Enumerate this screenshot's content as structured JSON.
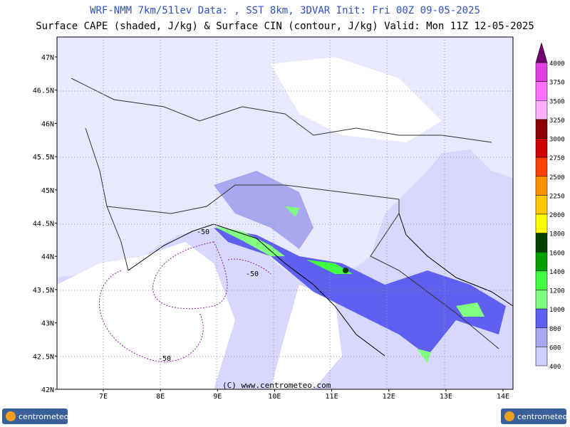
{
  "header": {
    "line1": "WRF-NMM 7km/51lev  Data: , SST 8km, 3DVAR  Init: Fri 00Z 09-05-2025",
    "line2": "Surface CAPE (shaded, J/kg) & Surface CIN (contour, J/kg)  Valid: Mon 11Z 12-05-2025"
  },
  "map": {
    "lat_labels": [
      "47N",
      "46.5N",
      "46N",
      "45.5N",
      "45N",
      "44.5N",
      "44N",
      "43.5N",
      "43N",
      "42.5N",
      "42N"
    ],
    "lon_labels": [
      "7E",
      "8E",
      "9E",
      "10E",
      "11E",
      "12E",
      "13E",
      "14E"
    ],
    "contour_labels": [
      "-50",
      "-50",
      "-50"
    ],
    "copyright": "(C) www.centrometeo.com"
  },
  "colorbar": {
    "labels": [
      "4000",
      "3750",
      "3500",
      "3250",
      "3000",
      "2750",
      "2500",
      "2250",
      "2000",
      "1800",
      "1600",
      "1400",
      "1200",
      "1000",
      "800",
      "600",
      "400"
    ],
    "colors": [
      "#700070",
      "#e040e0",
      "#ff70ff",
      "#ffb0ff",
      "#900000",
      "#d00000",
      "#ff4000",
      "#ff9000",
      "#ffc800",
      "#ffff00",
      "#004000",
      "#00a000",
      "#40ff40",
      "#80ff80",
      "#6060f0",
      "#a8a8f0",
      "#d0d0ff"
    ]
  },
  "footer": {
    "logo_left": "centrometeo",
    "logo_right": "centrometeo"
  }
}
